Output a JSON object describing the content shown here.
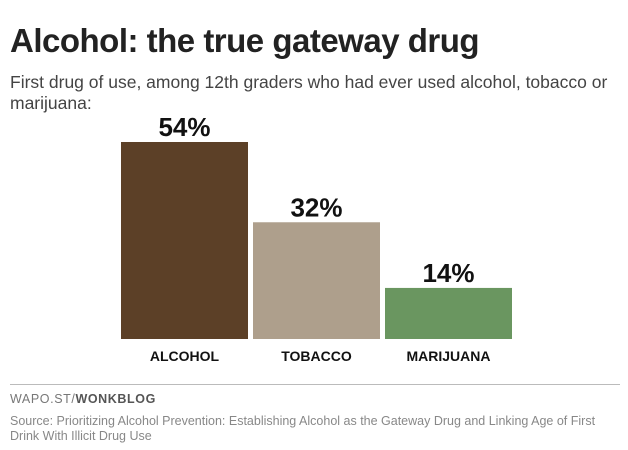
{
  "header": {
    "title": "Alcohol: the true gateway drug",
    "subtitle": "First drug of use, among 12th graders who had ever used alcohol, tobacco or marijuana:"
  },
  "footer": {
    "brand_prefix": "WAPO.ST/",
    "brand_name": "WONKBLOG",
    "source": "Source: Prioritizing Alcohol Prevention: Establishing Alcohol as the Gateway Drug and Linking Age of First Drink With Illicit Drug Use"
  },
  "chart_data": {
    "type": "bar",
    "title": "",
    "xlabel": "",
    "ylabel": "",
    "categories": [
      "ALCOHOL",
      "TOBACCO",
      "MARIJUANA"
    ],
    "values": [
      54,
      32,
      14
    ],
    "value_labels": [
      "54%",
      "32%",
      "14%"
    ],
    "colors": [
      "#5c4027",
      "#ae9f8c",
      "#6a9660"
    ],
    "ylim": [
      0,
      54
    ],
    "grid": false,
    "legend": "none"
  }
}
